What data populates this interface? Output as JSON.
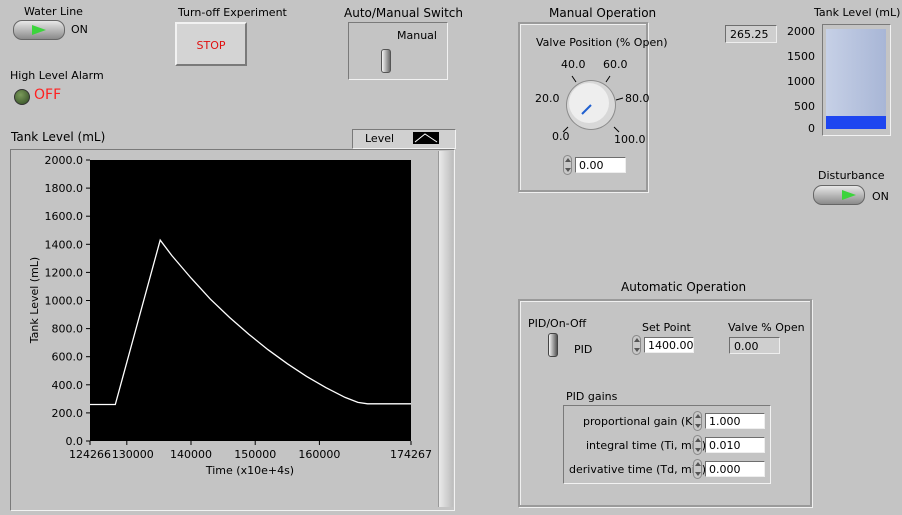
{
  "water_line": {
    "label": "Water Line",
    "state": "ON"
  },
  "stop_section": {
    "label": "Turn-off Experiment",
    "button": "STOP"
  },
  "auto_manual": {
    "label": "Auto/Manual Switch",
    "mode": "Manual"
  },
  "alarm": {
    "label": "High Level Alarm",
    "state": "OFF"
  },
  "manual_op": {
    "title": "Manual Operation",
    "knob_label": "Valve Position (% Open)",
    "knob_ticks": [
      "0.0",
      "20.0",
      "40.0",
      "60.0",
      "80.0",
      "100.0"
    ],
    "value": "0.00"
  },
  "tank_level": {
    "label": "Tank Level (mL)",
    "readout": "265.25",
    "scale": [
      "2000",
      "1500",
      "1000",
      "500",
      "0"
    ],
    "level": 265.25,
    "max": 2000
  },
  "disturbance": {
    "label": "Disturbance",
    "state": "ON"
  },
  "chart": {
    "title": "Tank Level (mL)",
    "legend_label": "Level"
  },
  "auto_op": {
    "title": "Automatic Operation",
    "pid_onoff_label": "PID/On-Off",
    "pid_label": "PID",
    "setpoint_label": "Set Point",
    "setpoint_value": "1400.00",
    "valve_label": "Valve % Open",
    "valve_value": "0.00",
    "gains_title": "PID gains",
    "kc_label": "proportional gain (Kc)",
    "kc_value": "1.000",
    "ti_label": "integral time (Ti, min)",
    "ti_value": "0.010",
    "td_label": "derivative time (Td, min)",
    "td_value": "0.000"
  },
  "colors": {
    "panel_bg": "#c4c4c4",
    "plot_bg": "#000000",
    "trace": "#ffffff",
    "led_green": "#3cff3c",
    "alarm_red": "#ff2020",
    "tank_fill": "#1e46f0"
  },
  "chart_data": {
    "type": "line",
    "title": "Tank Level (mL)",
    "xlabel": "Time (x10e+4s)",
    "ylabel": "Tank Level (mL)",
    "xlim": [
      124266,
      174267
    ],
    "ylim": [
      0,
      2000
    ],
    "x_ticks": [
      "124266",
      "130000",
      "140000",
      "150000",
      "160000",
      "174267"
    ],
    "y_ticks": [
      "0.0",
      "200.0",
      "400.0",
      "600.0",
      "800.0",
      "1000.0",
      "1200.0",
      "1400.0",
      "1600.0",
      "1800.0",
      "2000.0"
    ],
    "grid": false,
    "legend": "top-right",
    "series": [
      {
        "name": "Level",
        "x": [
          124266,
          128200,
          135200,
          137000,
          140000,
          143000,
          146000,
          149000,
          152000,
          155000,
          158000,
          161000,
          164000,
          166000,
          167500,
          170000,
          174267
        ],
        "y": [
          260,
          260,
          1430,
          1320,
          1160,
          1010,
          880,
          760,
          650,
          550,
          460,
          380,
          310,
          275,
          265,
          265,
          265
        ]
      }
    ]
  }
}
